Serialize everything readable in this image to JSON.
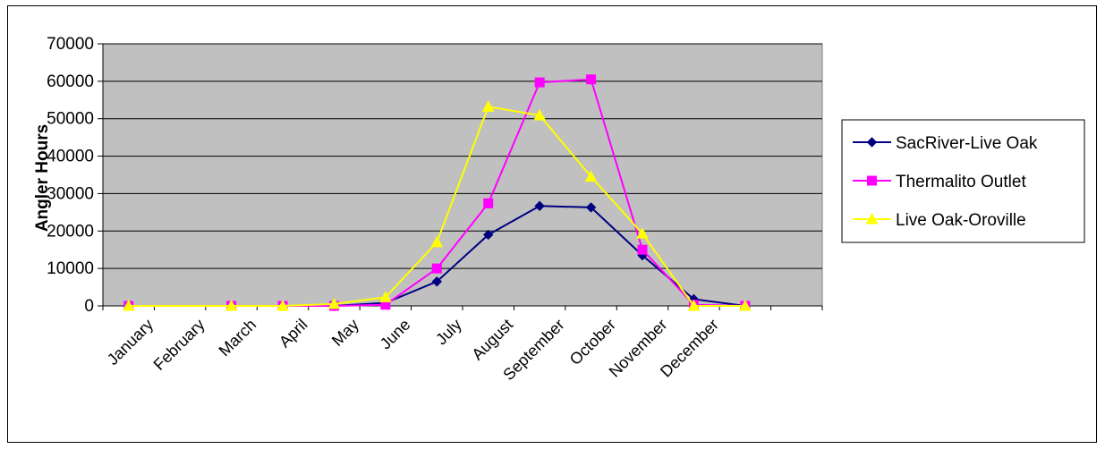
{
  "chart_data": {
    "type": "line",
    "title": "",
    "xlabel": "",
    "ylabel": "Angler Hours",
    "categories": [
      "January",
      "February",
      "March",
      "April",
      "May",
      "June",
      "July",
      "August",
      "September",
      "October",
      "November",
      "December"
    ],
    "ylim": [
      0,
      70000
    ],
    "yticks": [
      0,
      10000,
      20000,
      30000,
      40000,
      50000,
      60000,
      70000
    ],
    "grid": true,
    "plot_background": "#C0C0C0",
    "legend_position": "right",
    "x_positions": [
      1,
      3,
      4,
      5,
      6,
      7,
      8,
      9,
      10,
      11,
      12,
      13
    ],
    "series": [
      {
        "name": "SacRiver-Live Oak",
        "color": "#000080",
        "marker": "diamond",
        "values": [
          0,
          0,
          0,
          0,
          800,
          6500,
          19000,
          26700,
          26300,
          13500,
          1800,
          0
        ]
      },
      {
        "name": "Thermalito Outlet",
        "color": "#FF00FF",
        "marker": "square",
        "values": [
          0,
          0,
          0,
          0,
          300,
          10000,
          27400,
          59700,
          60500,
          15000,
          300,
          0
        ]
      },
      {
        "name": "Live Oak-Oroville",
        "color": "#FFFF00",
        "marker": "triangle",
        "values": [
          0,
          0,
          0,
          500,
          2300,
          17000,
          53200,
          50900,
          34500,
          19300,
          0,
          0
        ]
      }
    ]
  }
}
